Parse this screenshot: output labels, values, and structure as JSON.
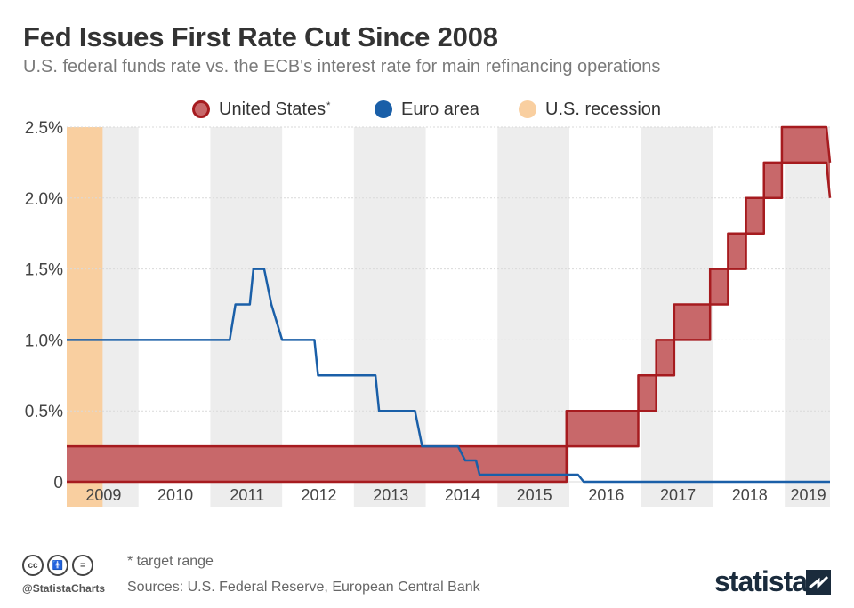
{
  "title": "Fed Issues First Rate Cut Since 2008",
  "subtitle": "U.S. federal funds rate vs. the ECB's interest rate for main refinancing operations",
  "legend": {
    "us_label": "United States",
    "us_sup": "*",
    "euro_label": "Euro area",
    "recession_label": "U.S. recession"
  },
  "footer": {
    "note": "* target range",
    "sources": "Sources: U.S. Federal Reserve, European Central Bank",
    "handle": "@StatistaCharts",
    "brand": "statista",
    "cc_icons": [
      "cc-icon",
      "by-icon",
      "nd-icon"
    ]
  },
  "colors": {
    "us_fill": "#c8686a",
    "us_line": "#a61b1f",
    "euro_line": "#1a5fa8",
    "recession": "#f9cfa0",
    "year_band": "#ededed",
    "grid": "#d9d9d9",
    "brand": "#1a2b3c"
  },
  "chart_data": {
    "type": "line",
    "title": "Fed Issues First Rate Cut Since 2008",
    "subtitle": "U.S. federal funds rate vs. the ECB's interest rate for main refinancing operations",
    "x_ticks": [
      "2009",
      "2010",
      "2011",
      "2012",
      "2013",
      "2014",
      "2015",
      "2016",
      "2017",
      "2018",
      "2019"
    ],
    "y_ticks": [
      "0",
      "0.5%",
      "1.0%",
      "1.5%",
      "2.0%",
      "2.5%"
    ],
    "y_tick_values": [
      0,
      0.5,
      1.0,
      1.5,
      2.0,
      2.5
    ],
    "ylim": [
      0,
      2.5
    ],
    "xlim": [
      2009.0,
      2019.63
    ],
    "grid": "horizontal",
    "legend_position": "top-center",
    "recession": {
      "start": 2009.0,
      "end": 2009.5
    },
    "series": [
      {
        "name": "United States",
        "kind": "range",
        "x": [
          2009.0,
          2015.96,
          2015.96,
          2016.96,
          2016.96,
          2017.21,
          2017.21,
          2017.46,
          2017.46,
          2017.96,
          2017.96,
          2018.21,
          2018.21,
          2018.46,
          2018.46,
          2018.71,
          2018.71,
          2018.96,
          2018.96,
          2019.58,
          2019.63
        ],
        "lower": [
          0,
          0,
          0.25,
          0.25,
          0.5,
          0.5,
          0.75,
          0.75,
          1.0,
          1.0,
          1.25,
          1.25,
          1.5,
          1.5,
          1.75,
          1.75,
          2.0,
          2.0,
          2.25,
          2.25,
          2.0
        ],
        "upper": [
          0.25,
          0.25,
          0.5,
          0.5,
          0.75,
          0.75,
          1.0,
          1.0,
          1.25,
          1.25,
          1.5,
          1.5,
          1.75,
          1.75,
          2.0,
          2.0,
          2.25,
          2.25,
          2.5,
          2.5,
          2.25
        ]
      },
      {
        "name": "Euro area",
        "kind": "line",
        "x": [
          2009.0,
          2011.27,
          2011.35,
          2011.55,
          2011.6,
          2011.75,
          2011.85,
          2012.0,
          2012.45,
          2012.5,
          2012.75,
          2013.3,
          2013.35,
          2013.55,
          2013.85,
          2013.95,
          2014.45,
          2014.55,
          2014.7,
          2014.75,
          2016.12,
          2016.2,
          2019.63
        ],
        "y": [
          1.0,
          1.0,
          1.25,
          1.25,
          1.5,
          1.5,
          1.25,
          1.0,
          1.0,
          0.75,
          0.75,
          0.75,
          0.5,
          0.5,
          0.5,
          0.25,
          0.25,
          0.15,
          0.15,
          0.05,
          0.05,
          0,
          0
        ]
      }
    ]
  }
}
